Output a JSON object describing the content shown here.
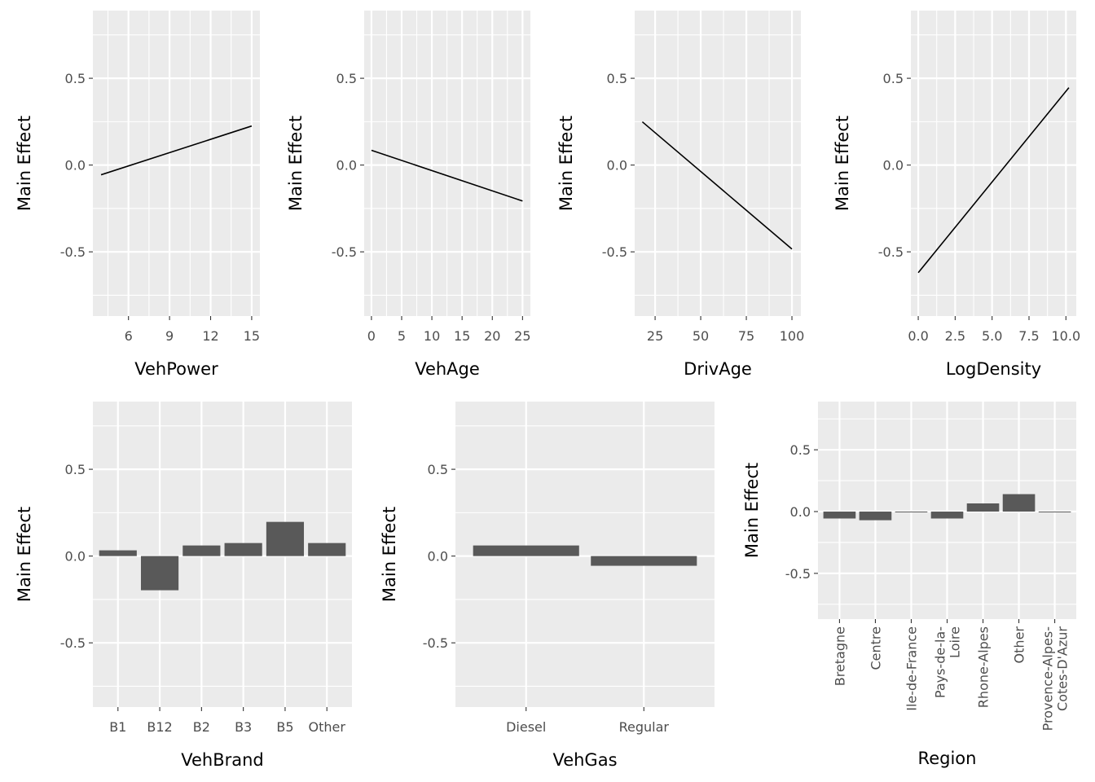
{
  "colors": {
    "panel_bg": "#ebebeb",
    "grid": "#ffffff",
    "bar": "#595959",
    "line": "#000000",
    "tick_text": "#4d4d4d"
  },
  "chart_data": [
    {
      "type": "line",
      "xlabel": "VehPower",
      "ylabel": "Main Effect",
      "x": [
        4,
        15
      ],
      "y": [
        -0.056,
        0.225
      ],
      "xticks": [
        6,
        9,
        12,
        15
      ],
      "xlim": [
        3.4,
        15.6
      ],
      "ylim": [
        -0.87,
        0.89
      ],
      "yticks": [
        -0.5,
        0.0,
        0.5
      ],
      "grid": true
    },
    {
      "type": "line",
      "xlabel": "VehAge",
      "ylabel": "Main Effect",
      "x": [
        0,
        25
      ],
      "y": [
        0.085,
        -0.207
      ],
      "xticks": [
        0,
        5,
        10,
        15,
        20,
        25
      ],
      "xlim": [
        -1.2,
        26.3
      ],
      "ylim": [
        -0.87,
        0.89
      ],
      "yticks": [
        -0.5,
        0.0,
        0.5
      ],
      "grid": true
    },
    {
      "type": "line",
      "xlabel": "DrivAge",
      "ylabel": "Main Effect",
      "x": [
        18,
        100
      ],
      "y": [
        0.249,
        -0.484
      ],
      "xticks": [
        25,
        50,
        75,
        100
      ],
      "xlim": [
        13.8,
        104.9
      ],
      "ylim": [
        -0.87,
        0.89
      ],
      "yticks": [
        -0.5,
        0.0,
        0.5
      ],
      "grid": true
    },
    {
      "type": "line",
      "xlabel": "LogDensity",
      "ylabel": "Main Effect",
      "x": [
        0,
        10.2
      ],
      "y": [
        -0.62,
        0.446
      ],
      "xticks": [
        0.0,
        2.5,
        5.0,
        7.5,
        10.0
      ],
      "xlim": [
        -0.5,
        10.7
      ],
      "ylim": [
        -0.87,
        0.89
      ],
      "yticks": [
        -0.5,
        0.0,
        0.5
      ],
      "grid": true
    },
    {
      "type": "bar",
      "xlabel": "VehBrand",
      "ylabel": "Main Effect",
      "categories": [
        "B1",
        "B12",
        "B2",
        "B3",
        "B5",
        "Other"
      ],
      "values": [
        0.033,
        -0.197,
        0.061,
        0.075,
        0.197,
        0.075
      ],
      "ylim": [
        -0.87,
        0.89
      ],
      "yticks": [
        -0.5,
        0.0,
        0.5
      ],
      "grid": true
    },
    {
      "type": "bar",
      "xlabel": "VehGas",
      "ylabel": "Main Effect",
      "categories": [
        "Diesel",
        "Regular"
      ],
      "values": [
        0.061,
        -0.056
      ],
      "ylim": [
        -0.87,
        0.89
      ],
      "yticks": [
        -0.5,
        0.0,
        0.5
      ],
      "grid": true
    },
    {
      "type": "bar",
      "xlabel": "Region",
      "ylabel": "Main Effect",
      "categories": [
        "Bretagne",
        "Centre",
        "Ile-de-France",
        "Pays-de-la-Loire",
        "Rhone-Alpes",
        "Other",
        "Provence-Alpes-Cotes-D'Azur"
      ],
      "values": [
        -0.056,
        -0.07,
        0.0,
        -0.056,
        0.066,
        0.141,
        -0.005
      ],
      "ylim": [
        -0.87,
        0.89
      ],
      "yticks": [
        -0.5,
        0.0,
        0.5
      ],
      "grid": true
    }
  ]
}
